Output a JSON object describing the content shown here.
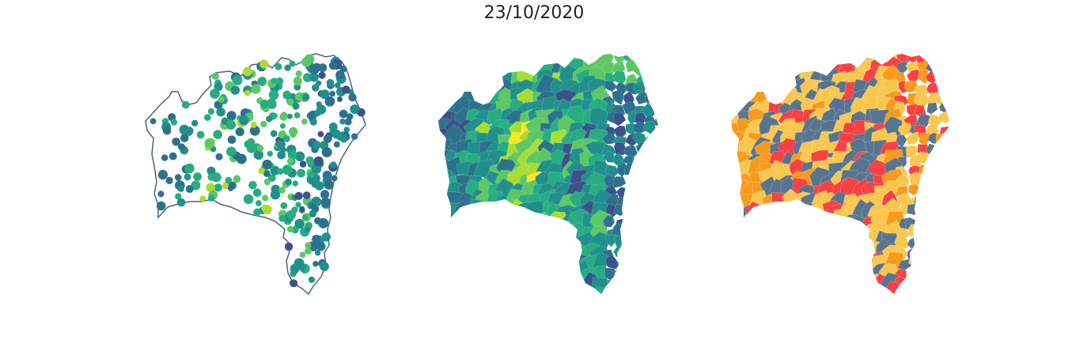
{
  "figure": {
    "title": "23/10/2020"
  },
  "maps": [
    {
      "type": "points",
      "outline_color": "#4a6480"
    },
    {
      "type": "choropleth-continuous"
    },
    {
      "type": "choropleth-classes"
    }
  ],
  "palettes": {
    "viridis": [
      "#440154",
      "#3b528b",
      "#2c728e",
      "#21908d",
      "#27ad81",
      "#5dc863",
      "#aadc32",
      "#fde725"
    ],
    "classes": [
      "#f79a1e",
      "#f9c74f",
      "#f94144",
      "#577590"
    ]
  },
  "colors": {
    "background": "#ffffff",
    "state_outline": "#4a6480"
  }
}
